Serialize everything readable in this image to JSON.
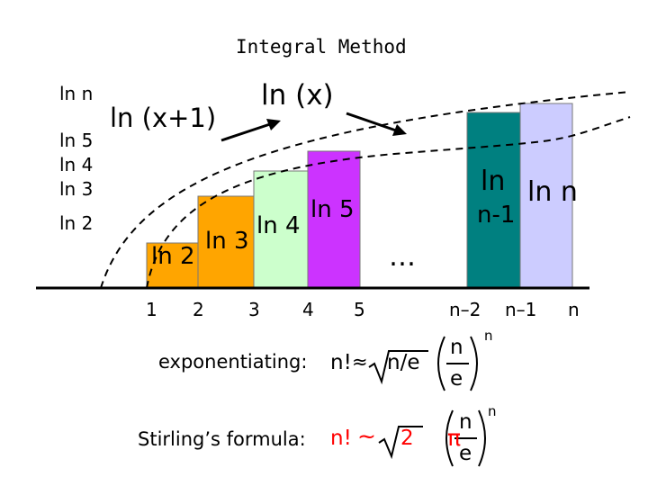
{
  "title": "Integral Method",
  "y_labels": {
    "ln_n": "ln n",
    "ln_5": "ln 5",
    "ln_4": "ln 4",
    "ln_3": "ln 3",
    "ln_2": "ln 2"
  },
  "curve_labels": {
    "ln_x_plus_1": "ln (x+1)",
    "ln_x": "ln (x)"
  },
  "bar_labels": {
    "ln_2": "ln 2",
    "ln_3": "ln 3",
    "ln_4": "ln 4",
    "ln_5": "ln 5",
    "ln_n_minus_1_top": "ln",
    "ln_n_minus_1_bottom": "n-1",
    "ln_n": "ln n"
  },
  "ellipsis": "…",
  "x_ticks": [
    "1",
    "2",
    "3",
    "4",
    "5",
    "n–2",
    "n–1",
    "n"
  ],
  "formulas": {
    "exp_label": "exponentiating:",
    "exp_lhs": "n!",
    "approx": "≈",
    "sqrt_arg": "n/e",
    "frac_num": "n",
    "frac_den": "e",
    "power": "n",
    "stirling_label": "Stirling’s formula:",
    "stirling_lhs": "n!",
    "tilde": "~",
    "sqrt2": "2",
    "pi": "π",
    "s_frac_num": "n",
    "s_frac_den": "e",
    "s_power": "n"
  },
  "colors": {
    "orange": "#FFA500",
    "light_green": "#CCFFCC",
    "purple": "#CC33FF",
    "teal": "#008080",
    "lavender": "#CCCCFF",
    "red": "#FF0000",
    "axis": "#000000"
  }
}
